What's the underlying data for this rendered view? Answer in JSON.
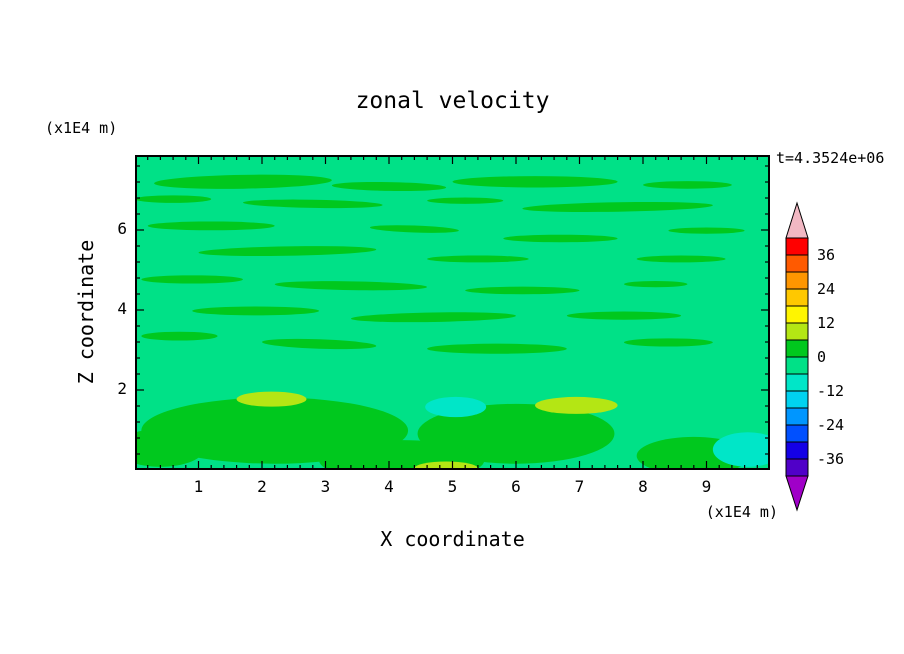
{
  "title": "zonal velocity",
  "time_label": "t=4.3524e+06",
  "axes": {
    "x_label": "X coordinate",
    "y_label": "Z coordinate",
    "x_unit": "(x1E4 m)",
    "y_unit": "(x1E4 m)"
  },
  "chart_data": {
    "type": "contour",
    "title": "zonal velocity",
    "time_annotation": "t=4.3524e+06",
    "xlabel": "X coordinate",
    "ylabel": "Z coordinate",
    "x_unit": "(x1E4 m)",
    "y_unit": "(x1E4 m)",
    "x_range": [
      0,
      10
    ],
    "y_range": [
      0,
      7.875
    ],
    "x_ticks": [
      1,
      2,
      3,
      4,
      5,
      6,
      7,
      8,
      9
    ],
    "y_ticks": [
      2,
      4,
      6
    ],
    "x_minor_step": 0.2,
    "y_minor_step": 0.4,
    "colorbar": {
      "tick_labels": [
        "36",
        "24",
        "12",
        "0",
        "-12",
        "-24",
        "-36"
      ],
      "level_step": 6,
      "over_color": "#F2B8C3",
      "under_color": "#A000C8",
      "segments": [
        {
          "range": [
            36,
            42
          ],
          "color": "#FF0000"
        },
        {
          "range": [
            30,
            36
          ],
          "color": "#FF5A00"
        },
        {
          "range": [
            24,
            30
          ],
          "color": "#FF9600"
        },
        {
          "range": [
            18,
            24
          ],
          "color": "#FFC800"
        },
        {
          "range": [
            12,
            18
          ],
          "color": "#FFF500"
        },
        {
          "range": [
            6,
            12
          ],
          "color": "#B4E614"
        },
        {
          "range": [
            0,
            6
          ],
          "color": "#00C81E"
        },
        {
          "range": [
            -6,
            0
          ],
          "color": "#00E187"
        },
        {
          "range": [
            -12,
            -6
          ],
          "color": "#00E6C8"
        },
        {
          "range": [
            -18,
            -12
          ],
          "color": "#00D2F0"
        },
        {
          "range": [
            -24,
            -18
          ],
          "color": "#0096FF"
        },
        {
          "range": [
            -30,
            -24
          ],
          "color": "#0050FF"
        },
        {
          "range": [
            -36,
            -30
          ],
          "color": "#1400E6"
        },
        {
          "range": [
            -42,
            -36
          ],
          "color": "#5000C8"
        }
      ]
    },
    "field": {
      "description": "filled contour bands of zonal velocity; background in the -6..0 band, elongated horizontal streaks in the 0..6 band, small 6..12 patches and -12..-6 patches near the bottom",
      "base_band": [
        -6,
        0
      ],
      "band_colors": {
        "base": "#00E187",
        "green": "#00C81E",
        "yellow_green": "#B4E614",
        "cyan": "#00E6C8"
      },
      "regions": [
        {
          "band": "green",
          "x": 0.17,
          "y": 0.085,
          "rx": 0.14,
          "ry": 0.022,
          "rot": -1
        },
        {
          "band": "green",
          "x": 0.4,
          "y": 0.1,
          "rx": 0.09,
          "ry": 0.014,
          "rot": 1
        },
        {
          "band": "green",
          "x": 0.63,
          "y": 0.085,
          "rx": 0.13,
          "ry": 0.018
        },
        {
          "band": "green",
          "x": 0.87,
          "y": 0.095,
          "rx": 0.07,
          "ry": 0.012
        },
        {
          "band": "green",
          "x": 0.06,
          "y": 0.14,
          "rx": 0.06,
          "ry": 0.012
        },
        {
          "band": "green",
          "x": 0.28,
          "y": 0.155,
          "rx": 0.11,
          "ry": 0.013,
          "rot": 1
        },
        {
          "band": "green",
          "x": 0.52,
          "y": 0.145,
          "rx": 0.06,
          "ry": 0.01
        },
        {
          "band": "green",
          "x": 0.76,
          "y": 0.165,
          "rx": 0.15,
          "ry": 0.015,
          "rot": -1
        },
        {
          "band": "green",
          "x": 0.12,
          "y": 0.225,
          "rx": 0.1,
          "ry": 0.014
        },
        {
          "band": "green",
          "x": 0.44,
          "y": 0.235,
          "rx": 0.07,
          "ry": 0.011,
          "rot": 2
        },
        {
          "band": "green",
          "x": 0.67,
          "y": 0.265,
          "rx": 0.09,
          "ry": 0.012
        },
        {
          "band": "green",
          "x": 0.9,
          "y": 0.24,
          "rx": 0.06,
          "ry": 0.01
        },
        {
          "band": "green",
          "x": 0.24,
          "y": 0.305,
          "rx": 0.14,
          "ry": 0.015,
          "rot": -1
        },
        {
          "band": "green",
          "x": 0.54,
          "y": 0.33,
          "rx": 0.08,
          "ry": 0.011
        },
        {
          "band": "green",
          "x": 0.86,
          "y": 0.33,
          "rx": 0.07,
          "ry": 0.011
        },
        {
          "band": "green",
          "x": 0.09,
          "y": 0.395,
          "rx": 0.08,
          "ry": 0.013
        },
        {
          "band": "green",
          "x": 0.34,
          "y": 0.415,
          "rx": 0.12,
          "ry": 0.014,
          "rot": 1
        },
        {
          "band": "green",
          "x": 0.61,
          "y": 0.43,
          "rx": 0.09,
          "ry": 0.012
        },
        {
          "band": "green",
          "x": 0.82,
          "y": 0.41,
          "rx": 0.05,
          "ry": 0.01
        },
        {
          "band": "green",
          "x": 0.19,
          "y": 0.495,
          "rx": 0.1,
          "ry": 0.014
        },
        {
          "band": "green",
          "x": 0.47,
          "y": 0.515,
          "rx": 0.13,
          "ry": 0.015,
          "rot": -1
        },
        {
          "band": "green",
          "x": 0.77,
          "y": 0.51,
          "rx": 0.09,
          "ry": 0.013
        },
        {
          "band": "green",
          "x": 0.07,
          "y": 0.575,
          "rx": 0.06,
          "ry": 0.014
        },
        {
          "band": "green",
          "x": 0.29,
          "y": 0.6,
          "rx": 0.09,
          "ry": 0.015,
          "rot": 2
        },
        {
          "band": "green",
          "x": 0.57,
          "y": 0.615,
          "rx": 0.11,
          "ry": 0.016
        },
        {
          "band": "green",
          "x": 0.84,
          "y": 0.595,
          "rx": 0.07,
          "ry": 0.013
        },
        {
          "band": "green",
          "x": 0.22,
          "y": 0.875,
          "rx": 0.21,
          "ry": 0.105
        },
        {
          "band": "green",
          "x": 0.6,
          "y": 0.885,
          "rx": 0.155,
          "ry": 0.095
        },
        {
          "band": "green",
          "x": 0.42,
          "y": 0.97,
          "rx": 0.13,
          "ry": 0.065
        },
        {
          "band": "green",
          "x": 0.88,
          "y": 0.955,
          "rx": 0.09,
          "ry": 0.06
        },
        {
          "band": "green",
          "x": 0.04,
          "y": 0.93,
          "rx": 0.07,
          "ry": 0.06
        },
        {
          "band": "yellow_green",
          "x": 0.215,
          "y": 0.775,
          "rx": 0.055,
          "ry": 0.024
        },
        {
          "band": "yellow_green",
          "x": 0.695,
          "y": 0.795,
          "rx": 0.065,
          "ry": 0.027
        },
        {
          "band": "yellow_green",
          "x": 0.49,
          "y": 0.995,
          "rx": 0.05,
          "ry": 0.022
        },
        {
          "band": "cyan",
          "x": 0.505,
          "y": 0.8,
          "rx": 0.048,
          "ry": 0.032
        },
        {
          "band": "cyan",
          "x": 0.965,
          "y": 0.935,
          "rx": 0.055,
          "ry": 0.055
        }
      ]
    }
  }
}
